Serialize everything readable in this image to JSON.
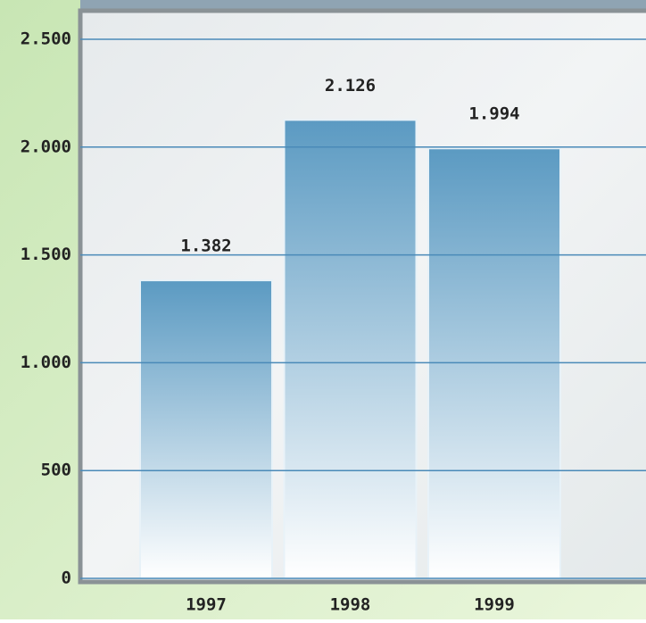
{
  "chart_data": {
    "type": "bar",
    "categories": [
      "1997",
      "1998",
      "1999"
    ],
    "values": [
      1382,
      2126,
      1994
    ],
    "value_labels": [
      "1.382",
      "2.126",
      "1.994"
    ],
    "color": "#5b9ac2",
    "ylim": [
      0,
      2500
    ],
    "yticks": [
      0,
      500,
      {
        "value": 1000,
        "label": "1.000"
      },
      {
        "value": 1500,
        "label": "1.500"
      },
      {
        "value": 2000,
        "label": "2.000"
      },
      {
        "value": 2500,
        "label": "2.500"
      }
    ],
    "grid": true
  }
}
